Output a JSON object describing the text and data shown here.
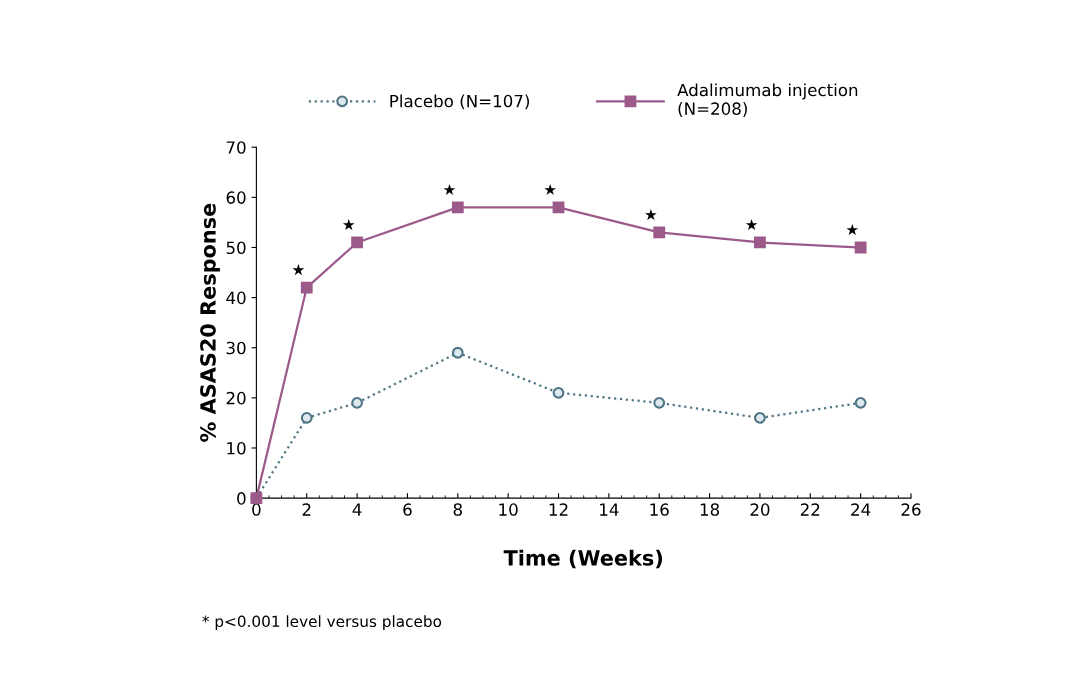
{
  "chart_data": {
    "type": "line",
    "xlabel": "Time (Weeks)",
    "ylabel": "% ASAS20 Response",
    "x": [
      0,
      2,
      4,
      8,
      12,
      16,
      20,
      24
    ],
    "series": [
      {
        "name": "Placebo (N=107)",
        "color": "#4f7585",
        "values": [
          0,
          16,
          19,
          29,
          21,
          19,
          16,
          19
        ],
        "marker": "circle",
        "line_style": "dotted"
      },
      {
        "name": "Adalimumab injection\n(N=208)",
        "color": "#9b5a8a",
        "values": [
          0,
          42,
          51,
          58,
          58,
          53,
          51,
          50
        ],
        "marker": "square",
        "line_style": "solid"
      }
    ],
    "xlim": [
      0,
      26
    ],
    "xticks": [
      0,
      2,
      4,
      6,
      8,
      10,
      12,
      14,
      16,
      18,
      20,
      22,
      24,
      26
    ],
    "ylim": [
      0,
      70
    ],
    "yticks": [
      0,
      10,
      20,
      30,
      40,
      50,
      60,
      70
    ],
    "grid": false,
    "legend": "top",
    "annotations": [
      {
        "text": "★",
        "x": 2,
        "y": 42
      },
      {
        "text": "★",
        "x": 4,
        "y": 51
      },
      {
        "text": "★",
        "x": 8,
        "y": 58
      },
      {
        "text": "★",
        "x": 12,
        "y": 58
      },
      {
        "text": "★",
        "x": 16,
        "y": 53
      },
      {
        "text": "★",
        "x": 20,
        "y": 51
      },
      {
        "text": "★",
        "x": 24,
        "y": 50
      },
      "* p<0.001 level versus placebo"
    ]
  }
}
